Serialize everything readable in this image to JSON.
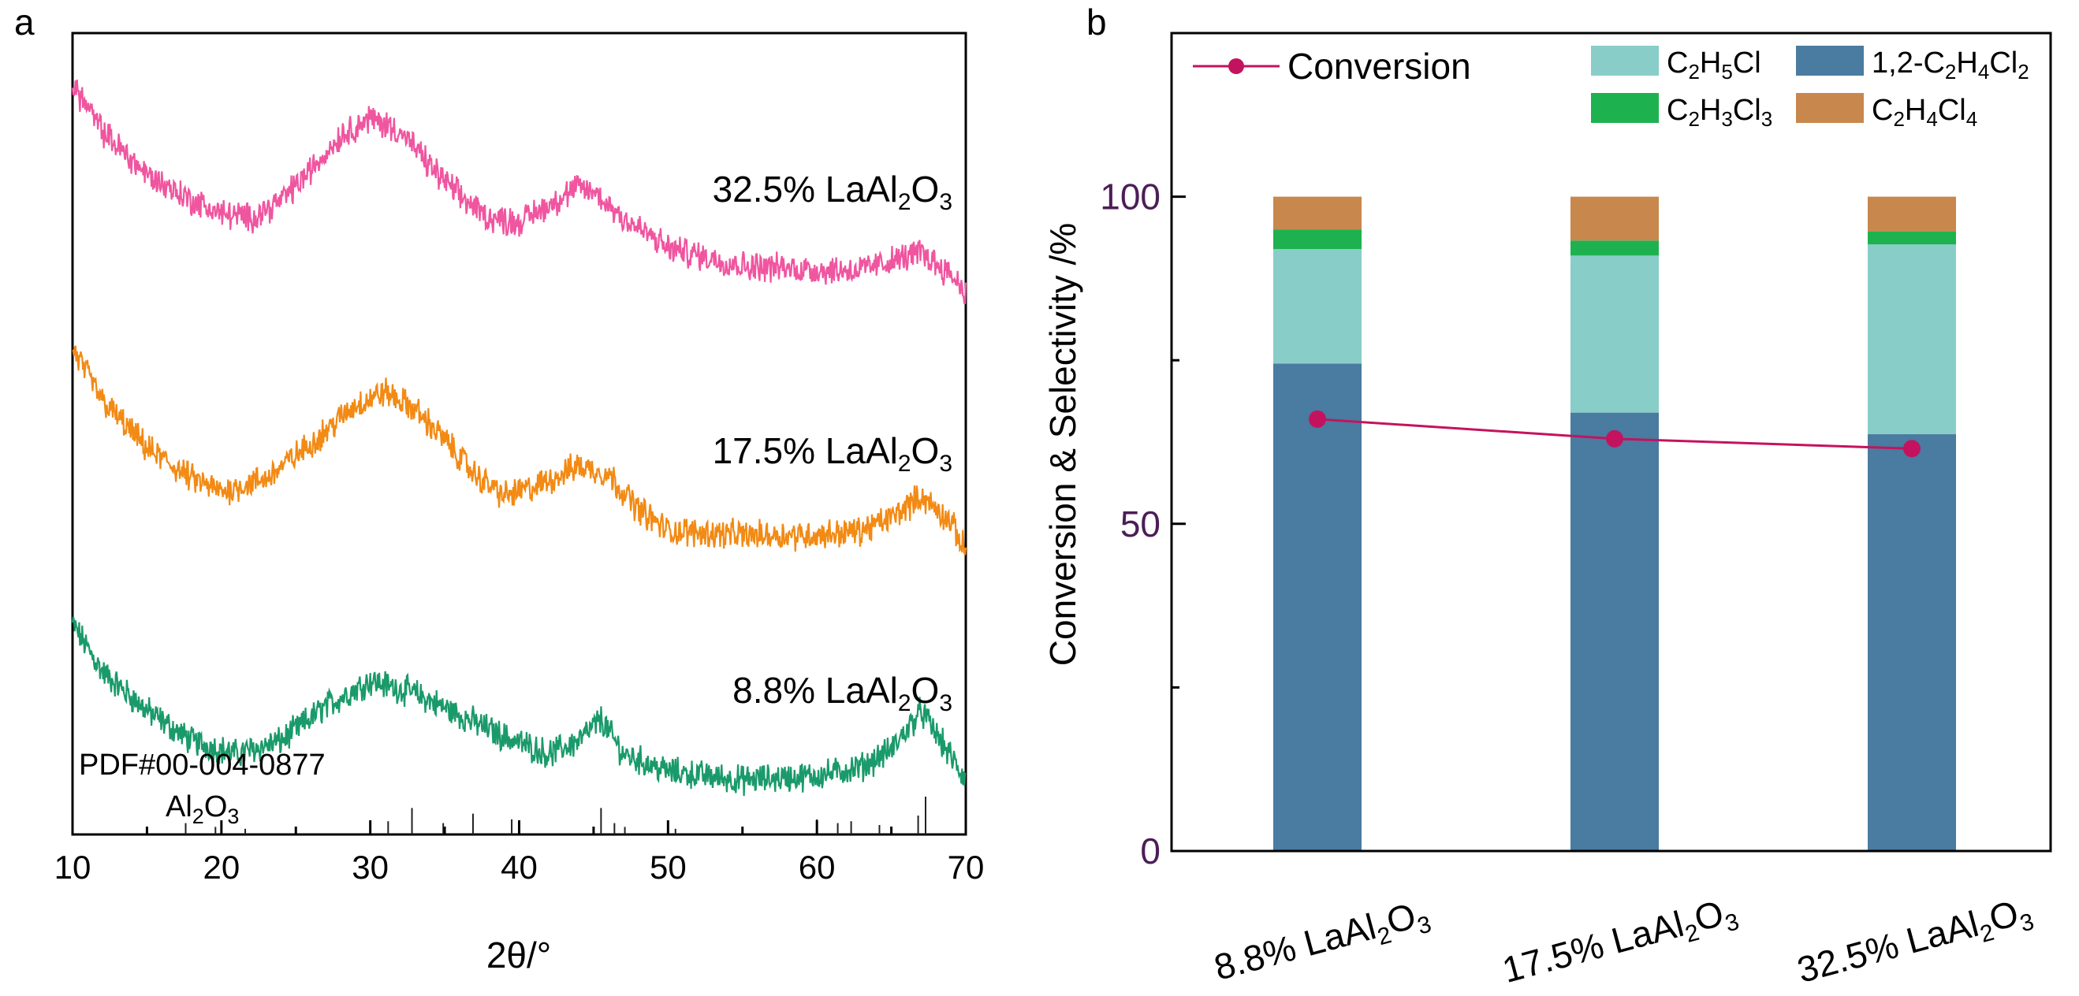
{
  "chart_data": [
    {
      "panel": "a",
      "type": "line",
      "xlabel": "2θ/°",
      "xlim": [
        10,
        70
      ],
      "x_ticks": [
        "10",
        "20",
        "30",
        "40",
        "50",
        "60",
        "70"
      ],
      "series": [
        {
          "name": "8.8% LaAl2O3",
          "label_prefix": "8.8% LaAl",
          "label_sub1": "2",
          "label_mid": "O",
          "label_sub2": "3",
          "color": "#1a9a6a",
          "profile": [
            [
              10,
              3.6
            ],
            [
              12,
              2.5
            ],
            [
              15,
              1.6
            ],
            [
              18,
              0.9
            ],
            [
              21,
              0.6
            ],
            [
              24,
              0.9
            ],
            [
              27,
              1.7
            ],
            [
              30,
              2.3
            ],
            [
              33,
              2.0
            ],
            [
              36,
              1.5
            ],
            [
              39,
              1.0
            ],
            [
              42,
              0.6
            ],
            [
              44,
              0.9
            ],
            [
              45.5,
              1.4
            ],
            [
              47,
              0.6
            ],
            [
              50,
              0.2
            ],
            [
              55,
              0.0
            ],
            [
              60,
              0.1
            ],
            [
              63,
              0.3
            ],
            [
              65,
              0.7
            ],
            [
              67,
              1.6
            ],
            [
              68.5,
              0.8
            ],
            [
              70,
              0.0
            ]
          ]
        },
        {
          "name": "17.5% LaAl2O3",
          "label_prefix": "17.5% LaAl",
          "label_sub1": "2",
          "label_mid": "O",
          "label_sub2": "3",
          "color": "#f28a14",
          "profile": [
            [
              10,
              4.5
            ],
            [
              12,
              3.3
            ],
            [
              15,
              2.2
            ],
            [
              18,
              1.5
            ],
            [
              20,
              1.2
            ],
            [
              23,
              1.5
            ],
            [
              26,
              2.3
            ],
            [
              29,
              3.2
            ],
            [
              31,
              3.5
            ],
            [
              33,
              3.1
            ],
            [
              35,
              2.4
            ],
            [
              37,
              1.6
            ],
            [
              39,
              1.1
            ],
            [
              41,
              1.3
            ],
            [
              44,
              1.8
            ],
            [
              46,
              1.6
            ],
            [
              48,
              0.8
            ],
            [
              50,
              0.3
            ],
            [
              55,
              0.2
            ],
            [
              60,
              0.2
            ],
            [
              63,
              0.3
            ],
            [
              65,
              0.6
            ],
            [
              67,
              1.1
            ],
            [
              69,
              0.5
            ],
            [
              70,
              -0.2
            ]
          ]
        },
        {
          "name": "32.5% LaAl2O3",
          "label_prefix": "32.5% LaAl",
          "label_sub1": "2",
          "label_mid": "O",
          "label_sub2": "3",
          "color": "#f0559f",
          "profile": [
            [
              10,
              4.8
            ],
            [
              12,
              3.7
            ],
            [
              15,
              2.7
            ],
            [
              18,
              2.1
            ],
            [
              20,
              1.8
            ],
            [
              22,
              1.7
            ],
            [
              24,
              2.1
            ],
            [
              26,
              2.8
            ],
            [
              28,
              3.6
            ],
            [
              30,
              4.0
            ],
            [
              32,
              3.7
            ],
            [
              34,
              2.9
            ],
            [
              36,
              2.2
            ],
            [
              38,
              1.7
            ],
            [
              40,
              1.6
            ],
            [
              42,
              2.0
            ],
            [
              44,
              2.4
            ],
            [
              45,
              2.3
            ],
            [
              47,
              1.7
            ],
            [
              50,
              1.0
            ],
            [
              55,
              0.6
            ],
            [
              60,
              0.5
            ],
            [
              63,
              0.5
            ],
            [
              65,
              0.7
            ],
            [
              67,
              0.9
            ],
            [
              69,
              0.4
            ],
            [
              70,
              0.0
            ]
          ]
        }
      ],
      "reference": {
        "card": "PDF#00-004-0877",
        "phase_prefix": "Al",
        "phase_sub1": "2",
        "phase_mid": "O",
        "phase_sub2": "3",
        "peaks": [
          [
            17.6,
            0.3
          ],
          [
            19.6,
            0.2
          ],
          [
            21.6,
            0.15
          ],
          [
            31.2,
            0.35
          ],
          [
            32.8,
            0.7
          ],
          [
            34.9,
            0.3
          ],
          [
            36.9,
            0.55
          ],
          [
            39.5,
            0.4
          ],
          [
            45.5,
            0.7
          ],
          [
            46.4,
            0.3
          ],
          [
            47.1,
            0.2
          ],
          [
            50.5,
            0.15
          ],
          [
            60.0,
            0.4
          ],
          [
            61.4,
            0.3
          ],
          [
            62.3,
            0.35
          ],
          [
            64.2,
            0.25
          ],
          [
            66.8,
            0.5
          ],
          [
            67.3,
            1.0
          ]
        ]
      }
    },
    {
      "panel": "b",
      "type": "bar",
      "ylabel": "Conversion & Selectivity /%",
      "ylim": [
        0,
        125
      ],
      "y_ticks": [
        "0",
        "50",
        "100"
      ],
      "categories": [
        {
          "prefix": "8.8% LaAl",
          "sub1": "2",
          "mid": "O",
          "sub2": "3"
        },
        {
          "prefix": "17.5% LaAl",
          "sub1": "2",
          "mid": "O",
          "sub2": "3"
        },
        {
          "prefix": "32.5% LaAl",
          "sub1": "2",
          "mid": "O",
          "sub2": "3"
        }
      ],
      "series": [
        {
          "name": "1,2-C2H4Cl2",
          "color": "#4a7ba0",
          "values": [
            74.5,
            67.0,
            63.7
          ]
        },
        {
          "name": "C2H5Cl",
          "color": "#89cdc8",
          "values": [
            17.5,
            24.0,
            29.0
          ]
        },
        {
          "name": "C2H3Cl3",
          "color": "#1db24f",
          "values": [
            3.0,
            2.3,
            2.0
          ]
        },
        {
          "name": "C2H4Cl4",
          "color": "#c8874c",
          "values": [
            5.0,
            6.7,
            5.3
          ]
        }
      ],
      "conversion": {
        "name": "Conversion",
        "color": "#c4135e",
        "values": [
          66.0,
          63.0,
          61.5
        ]
      },
      "legend": {
        "conversion_label": "Conversion",
        "c2h5cl": {
          "a": "C",
          "s1": "2",
          "b": "H",
          "s2": "5",
          "c": "Cl"
        },
        "dce": {
          "a": "1,2-C",
          "s1": "2",
          "b": "H",
          "s2": "4",
          "c": "Cl",
          "s3": "2"
        },
        "tce": {
          "a": "C",
          "s1": "2",
          "b": "H",
          "s2": "3",
          "c": "Cl",
          "s3": "3"
        },
        "pce": {
          "a": "C",
          "s1": "2",
          "b": "H",
          "s2": "4",
          "c": "Cl",
          "s3": "4"
        }
      }
    }
  ]
}
